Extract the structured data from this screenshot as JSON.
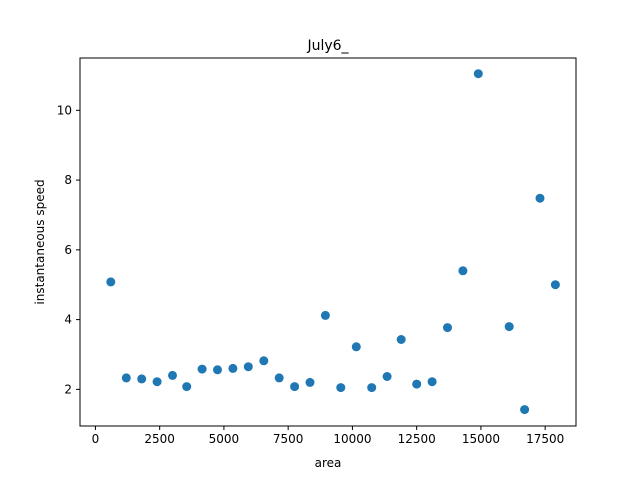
{
  "chart_data": {
    "type": "scatter",
    "title": "July6_",
    "xlabel": "area",
    "ylabel": "instantaneous speed",
    "xlim": [
      -600,
      18700
    ],
    "ylim": [
      0.95,
      11.5
    ],
    "x_ticks": [
      0,
      2500,
      5000,
      7500,
      10000,
      12500,
      15000,
      17500
    ],
    "x_tick_labels": [
      "0",
      "2500",
      "5000",
      "7500",
      "10000",
      "12500",
      "15000",
      "17500"
    ],
    "y_ticks": [
      2,
      4,
      6,
      8,
      10
    ],
    "y_tick_labels": [
      "2",
      "4",
      "6",
      "8",
      "10"
    ],
    "grid": false,
    "marker_color": "#1f77b4",
    "series": [
      {
        "x": [
          600,
          1200,
          1800,
          2400,
          3000,
          3550,
          4150,
          4750,
          5350,
          5950,
          6550,
          7150,
          7750,
          8350,
          8950,
          9550,
          10150,
          10750,
          11350,
          11900,
          12500,
          13100,
          13700,
          14300,
          14900,
          16100,
          16700,
          17300,
          17900
        ],
        "y": [
          5.08,
          2.33,
          2.3,
          2.22,
          2.4,
          2.08,
          2.58,
          2.56,
          2.6,
          2.65,
          2.82,
          2.33,
          2.08,
          2.2,
          4.12,
          2.05,
          3.22,
          2.05,
          2.37,
          3.43,
          2.15,
          2.22,
          3.77,
          5.4,
          11.05,
          3.8,
          1.42,
          7.48,
          5.0
        ]
      }
    ]
  }
}
